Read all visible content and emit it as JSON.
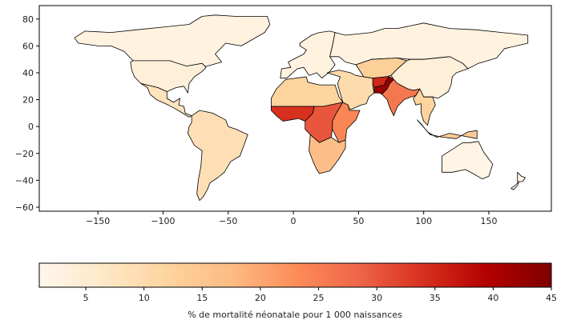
{
  "chart_data": {
    "type": "choropleth",
    "title": "",
    "projection": "plate-carree",
    "x_ticks": [
      -150,
      -100,
      -50,
      0,
      50,
      100,
      150
    ],
    "y_ticks": [
      80,
      60,
      40,
      20,
      0,
      -20,
      -40,
      -60
    ],
    "xlim": [
      -195,
      198
    ],
    "ylim": [
      -63,
      90
    ],
    "colormap": "OrRd",
    "colormap_stops": [
      "#fff7ec",
      "#fee8c8",
      "#fdd49e",
      "#fdbb84",
      "#fc8d59",
      "#ef6548",
      "#d7301f",
      "#b30000",
      "#7f0000"
    ],
    "colorbar": {
      "orientation": "horizontal",
      "range": [
        1,
        45
      ],
      "ticks": [
        5,
        10,
        15,
        20,
        25,
        30,
        35,
        40,
        45
      ],
      "label": "% de mortalité néonatale pour 1 000 naissances"
    },
    "regions": [
      {
        "name": "Canada / Greenland",
        "value": 3
      },
      {
        "name": "United States",
        "value": 4
      },
      {
        "name": "Mexico / Central America",
        "value": 8
      },
      {
        "name": "South America",
        "value": 9
      },
      {
        "name": "Europe",
        "value": 3
      },
      {
        "name": "Russia",
        "value": 3
      },
      {
        "name": "North Africa",
        "value": 12
      },
      {
        "name": "Middle East",
        "value": 10
      },
      {
        "name": "Central Asia",
        "value": 13
      },
      {
        "name": "Afghanistan",
        "value": 35
      },
      {
        "name": "Pakistan",
        "value": 42
      },
      {
        "name": "India",
        "value": 26
      },
      {
        "name": "China / Mongolia",
        "value": 4
      },
      {
        "name": "Southeast Asia",
        "value": 12
      },
      {
        "name": "Indonesia",
        "value": 14
      },
      {
        "name": "West Africa",
        "value": 34
      },
      {
        "name": "Central Africa",
        "value": 30
      },
      {
        "name": "East Africa",
        "value": 24
      },
      {
        "name": "Southern Africa",
        "value": 17
      },
      {
        "name": "Australia",
        "value": 2
      },
      {
        "name": "New Zealand",
        "value": 2
      }
    ]
  }
}
